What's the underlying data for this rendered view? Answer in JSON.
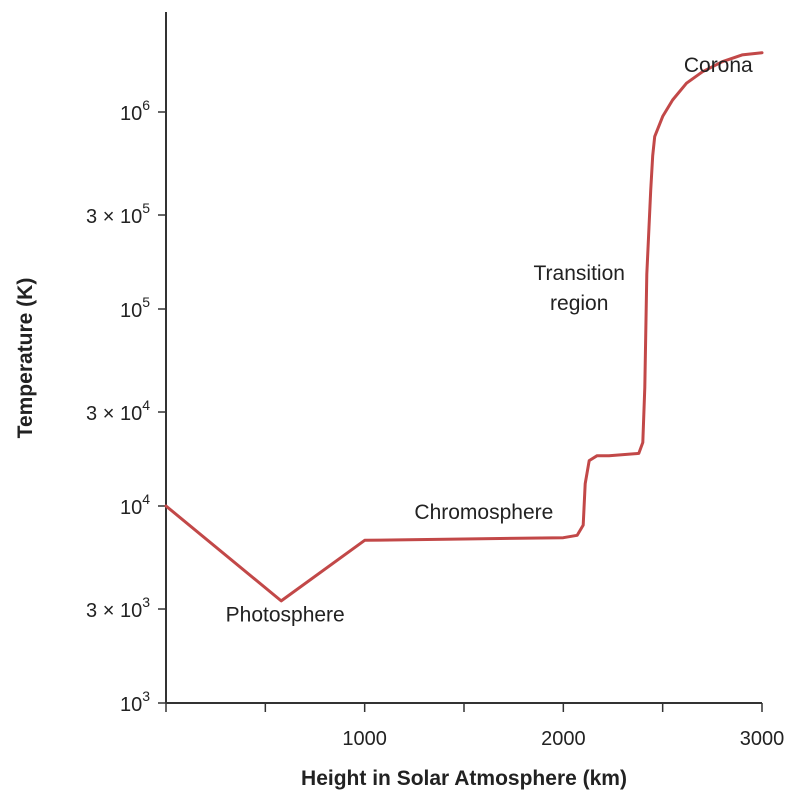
{
  "chart_data": {
    "type": "line",
    "title": "",
    "xlabel": "Height in Solar Atmosphere (km)",
    "ylabel": "Temperature (K)",
    "xlim": [
      0,
      3000
    ],
    "ylim": [
      1000,
      2000000
    ],
    "yscale": "log",
    "grid": false,
    "x_ticks": [
      {
        "value": 0,
        "label": ""
      },
      {
        "value": 500,
        "label": ""
      },
      {
        "value": 1000,
        "label": "1000"
      },
      {
        "value": 1500,
        "label": ""
      },
      {
        "value": 2000,
        "label": "2000"
      },
      {
        "value": 2500,
        "label": ""
      },
      {
        "value": 3000,
        "label": "3000"
      }
    ],
    "y_ticks": [
      {
        "value": 1000,
        "base": "10",
        "exp": "3",
        "prefix": ""
      },
      {
        "value": 3000,
        "base": "10",
        "exp": "3",
        "prefix": "3 × "
      },
      {
        "value": 10000,
        "base": "10",
        "exp": "4",
        "prefix": ""
      },
      {
        "value": 30000,
        "base": "10",
        "exp": "4",
        "prefix": "3 × "
      },
      {
        "value": 100000,
        "base": "10",
        "exp": "5",
        "prefix": ""
      },
      {
        "value": 300000,
        "base": "10",
        "exp": "5",
        "prefix": "3 × "
      },
      {
        "value": 1000000,
        "base": "10",
        "exp": "6",
        "prefix": ""
      }
    ],
    "series": [
      {
        "color": "#c24848",
        "x": [
          0,
          580,
          1000,
          1500,
          2000,
          2070,
          2100,
          2110,
          2130,
          2170,
          2230,
          2380,
          2400,
          2410,
          2420,
          2440,
          2450,
          2460,
          2500,
          2550,
          2620,
          2700,
          2800,
          2900,
          3000
        ],
        "y": [
          10000,
          3300,
          6700,
          6800,
          6900,
          7100,
          8000,
          13000,
          17000,
          18000,
          18000,
          18500,
          21000,
          40000,
          150000,
          400000,
          600000,
          750000,
          950000,
          1150000,
          1400000,
          1600000,
          1800000,
          1950000,
          2000000
        ]
      }
    ],
    "annotations": [
      {
        "lines": [
          "Corona"
        ],
        "x": 2780,
        "y": 1600000
      },
      {
        "lines": [
          "Transition",
          "region"
        ],
        "x": 2080,
        "y": 140000
      },
      {
        "lines": [
          "Chromosphere"
        ],
        "x": 1600,
        "y": 8600
      },
      {
        "lines": [
          "Photosphere"
        ],
        "x": 600,
        "y": 2600
      }
    ]
  }
}
